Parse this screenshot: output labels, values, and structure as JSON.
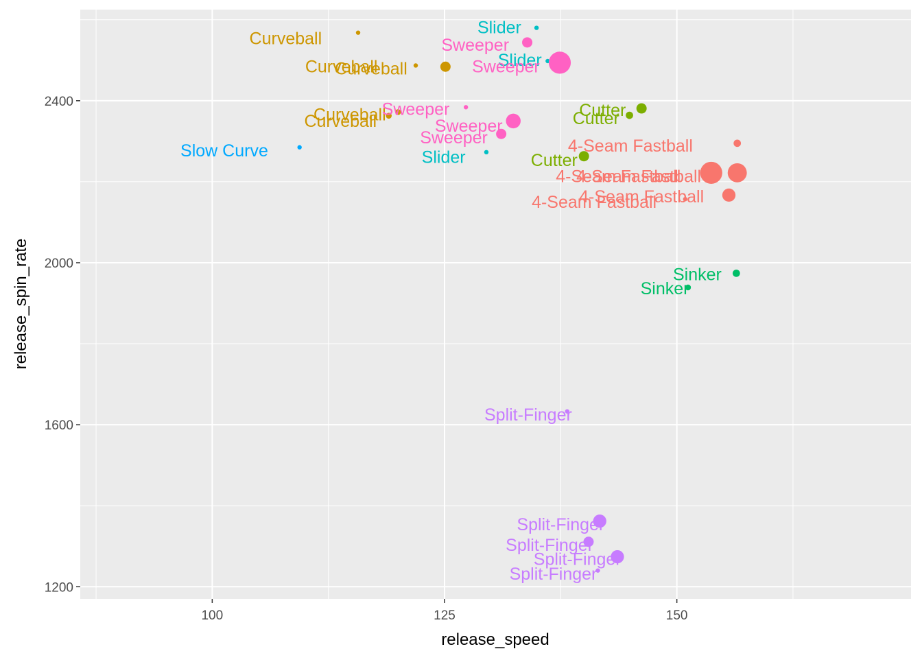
{
  "chart_data": {
    "type": "scatter",
    "title": "",
    "xlabel": "release_speed",
    "ylabel": "release_spin_rate",
    "xlim": [
      85.8,
      175.2
    ],
    "ylim": [
      1170,
      2625
    ],
    "x_ticks": [
      100,
      125,
      150
    ],
    "y_ticks": [
      1200,
      1600,
      2000,
      2400
    ],
    "x_tick_labels": [
      "100",
      "125",
      "150"
    ],
    "y_tick_labels": [
      "1200",
      "1600",
      "2000",
      "2400"
    ],
    "grid": true,
    "legend": "none",
    "size_encoding": "point size varies (unlabeled)",
    "colors": {
      "Curveball": "#CD9600",
      "Slider": "#00BFC4",
      "Sweeper": "#FF61C3",
      "Cutter": "#7CAE00",
      "4-Seam Fastball": "#F8766D",
      "Sinker": "#00BE67",
      "Split-Finger": "#C77CFF",
      "Slow Curve": "#00A9FF"
    },
    "points": [
      {
        "pitch": "Curveball",
        "x": 115.7,
        "y": 2568,
        "size": 1
      },
      {
        "pitch": "Curveball",
        "x": 121.9,
        "y": 2487,
        "size": 1
      },
      {
        "pitch": "Curveball",
        "x": 125.1,
        "y": 2484,
        "size": 3
      },
      {
        "pitch": "Curveball",
        "x": 120.0,
        "y": 2372,
        "size": 1.5
      },
      {
        "pitch": "Curveball",
        "x": 119.0,
        "y": 2363,
        "size": 1.5
      },
      {
        "pitch": "Slider",
        "x": 134.9,
        "y": 2580,
        "size": 1
      },
      {
        "pitch": "Slider",
        "x": 136.1,
        "y": 2498,
        "size": 1
      },
      {
        "pitch": "Slider",
        "x": 129.5,
        "y": 2273,
        "size": 1
      },
      {
        "pitch": "Sweeper",
        "x": 133.9,
        "y": 2544,
        "size": 3
      },
      {
        "pitch": "Sweeper",
        "x": 137.4,
        "y": 2494,
        "size": 7
      },
      {
        "pitch": "Sweeper",
        "x": 127.3,
        "y": 2384,
        "size": 1
      },
      {
        "pitch": "Sweeper",
        "x": 132.4,
        "y": 2350,
        "size": 4.5
      },
      {
        "pitch": "Sweeper",
        "x": 131.1,
        "y": 2318,
        "size": 3
      },
      {
        "pitch": "Cutter",
        "x": 146.2,
        "y": 2381,
        "size": 3
      },
      {
        "pitch": "Cutter",
        "x": 144.9,
        "y": 2364,
        "size": 2
      },
      {
        "pitch": "Cutter",
        "x": 140.0,
        "y": 2263,
        "size": 3
      },
      {
        "pitch": "4-Seam Fastball",
        "x": 156.5,
        "y": 2295,
        "size": 2
      },
      {
        "pitch": "4-Seam Fastball",
        "x": 153.7,
        "y": 2222,
        "size": 7
      },
      {
        "pitch": "4-Seam Fastball",
        "x": 156.5,
        "y": 2222,
        "size": 6
      },
      {
        "pitch": "4-Seam Fastball",
        "x": 155.6,
        "y": 2167,
        "size": 4
      },
      {
        "pitch": "4-Seam Fastball",
        "x": 150.9,
        "y": 2157,
        "size": 1
      },
      {
        "pitch": "Sinker",
        "x": 156.4,
        "y": 1974,
        "size": 2
      },
      {
        "pitch": "Sinker",
        "x": 151.2,
        "y": 1939,
        "size": 1.5
      },
      {
        "pitch": "Split-Finger",
        "x": 138.2,
        "y": 1633,
        "size": 1
      },
      {
        "pitch": "Split-Finger",
        "x": 141.7,
        "y": 1362,
        "size": 4
      },
      {
        "pitch": "Split-Finger",
        "x": 140.5,
        "y": 1311,
        "size": 3
      },
      {
        "pitch": "Split-Finger",
        "x": 143.6,
        "y": 1274,
        "size": 4
      },
      {
        "pitch": "Split-Finger",
        "x": 141.5,
        "y": 1240,
        "size": 1
      },
      {
        "pitch": "Slow Curve",
        "x": 109.4,
        "y": 2285,
        "size": 1
      }
    ],
    "labels": [
      {
        "text": "Curveball",
        "pitch": "Curveball",
        "x": 107.9,
        "y": 2555
      },
      {
        "text": "Curveball",
        "pitch": "Curveball",
        "x": 113.9,
        "y": 2485
      },
      {
        "text": "Curveball",
        "pitch": "Curveball",
        "x": 117.1,
        "y": 2480
      },
      {
        "text": "Curveball",
        "pitch": "Curveball",
        "x": 114.8,
        "y": 2367
      },
      {
        "text": "Curveball",
        "pitch": "Curveball",
        "x": 113.8,
        "y": 2351
      },
      {
        "text": "Slider",
        "pitch": "Slider",
        "x": 130.9,
        "y": 2582
      },
      {
        "text": "Slider",
        "pitch": "Slider",
        "x": 133.1,
        "y": 2501
      },
      {
        "text": "Slider",
        "pitch": "Slider",
        "x": 124.9,
        "y": 2262
      },
      {
        "text": "Sweeper",
        "pitch": "Sweeper",
        "x": 128.3,
        "y": 2539
      },
      {
        "text": "Sweeper",
        "pitch": "Sweeper",
        "x": 131.6,
        "y": 2485
      },
      {
        "text": "Sweeper",
        "pitch": "Sweeper",
        "x": 121.9,
        "y": 2380
      },
      {
        "text": "Sweeper",
        "pitch": "Sweeper",
        "x": 127.6,
        "y": 2339
      },
      {
        "text": "Sweeper",
        "pitch": "Sweeper",
        "x": 126.0,
        "y": 2310
      },
      {
        "text": "Cutter",
        "pitch": "Cutter",
        "x": 142.0,
        "y": 2378
      },
      {
        "text": "Cutter",
        "pitch": "Cutter",
        "x": 141.3,
        "y": 2357
      },
      {
        "text": "Cutter",
        "pitch": "Cutter",
        "x": 136.8,
        "y": 2254
      },
      {
        "text": "4-Seam Fastball",
        "pitch": "4-Seam Fastball",
        "x": 145.0,
        "y": 2290
      },
      {
        "text": "4-Seam Fastball",
        "pitch": "4-Seam Fastball",
        "x": 143.7,
        "y": 2214
      },
      {
        "text": "4-Seam Fastball",
        "pitch": "4-Seam Fastball",
        "x": 145.9,
        "y": 2214
      },
      {
        "text": "4-Seam Fastball",
        "pitch": "4-Seam Fastball",
        "x": 146.2,
        "y": 2164
      },
      {
        "text": "4-Seam Fastball",
        "pitch": "4-Seam Fastball",
        "x": 141.1,
        "y": 2151
      },
      {
        "text": "Sinker",
        "pitch": "Sinker",
        "x": 152.2,
        "y": 1972
      },
      {
        "text": "Sinker",
        "pitch": "Sinker",
        "x": 148.7,
        "y": 1937
      },
      {
        "text": "Split-Finger",
        "pitch": "Split-Finger",
        "x": 134.0,
        "y": 1626
      },
      {
        "text": "Split-Finger",
        "pitch": "Split-Finger",
        "x": 137.5,
        "y": 1355
      },
      {
        "text": "Split-Finger",
        "pitch": "Split-Finger",
        "x": 136.3,
        "y": 1304
      },
      {
        "text": "Split-Finger",
        "pitch": "Split-Finger",
        "x": 139.3,
        "y": 1269
      },
      {
        "text": "Split-Finger",
        "pitch": "Split-Finger",
        "x": 136.7,
        "y": 1233
      },
      {
        "text": "Slow Curve",
        "pitch": "Slow Curve",
        "x": 101.3,
        "y": 2278
      }
    ]
  }
}
